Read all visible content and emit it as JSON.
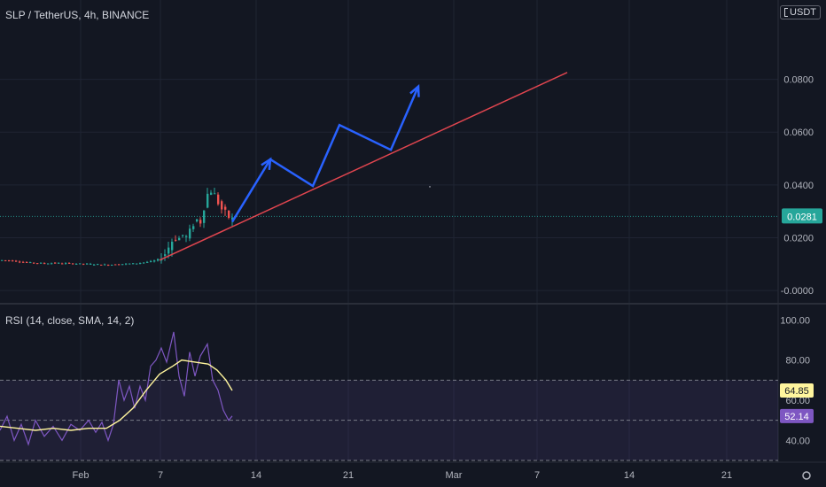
{
  "header": {
    "title": "SLP / TetherUS, 4h, BINANCE",
    "currency": "USDT"
  },
  "rsi": {
    "title": "RSI (14, close, SMA, 14, 2)"
  },
  "colors": {
    "background": "#131722",
    "grid": "#1f2433",
    "up": "#26a69a",
    "down": "#ef5350",
    "trendline": "#e0454f",
    "projection": "#2962ff",
    "price_line": "#26a69a",
    "rsi_line": "#7e57c2",
    "rsi_ma": "#fff59d",
    "text": "#b2b5be"
  },
  "chart_data": [
    {
      "type": "candlestick",
      "title": "SLP / TetherUS, 4h, BINANCE",
      "y_ticks": [
        "0.0800",
        "0.0600",
        "0.0400",
        "0.0200",
        "-0.0000"
      ],
      "y_tick_values": [
        0.08,
        0.06,
        0.04,
        0.02,
        0.0
      ],
      "x_ticks": [
        "Feb",
        "7",
        "14",
        "21",
        "Mar",
        "7",
        "14",
        "21"
      ],
      "last_price": "0.0281",
      "last_price_value": 0.0281,
      "ylim": [
        -0.004,
        0.1
      ],
      "price_path": [
        [
          0,
          0.0115
        ],
        [
          10,
          0.0113
        ],
        [
          20,
          0.011
        ],
        [
          30,
          0.0106
        ],
        [
          40,
          0.0104
        ],
        [
          50,
          0.0103
        ],
        [
          60,
          0.0104
        ],
        [
          70,
          0.0103
        ],
        [
          80,
          0.0102
        ],
        [
          90,
          0.0101
        ],
        [
          100,
          0.01
        ],
        [
          110,
          0.0099
        ],
        [
          120,
          0.0097
        ],
        [
          130,
          0.0099
        ],
        [
          140,
          0.0101
        ],
        [
          150,
          0.0102
        ],
        [
          160,
          0.0106
        ],
        [
          170,
          0.011
        ],
        [
          178,
          0.0118
        ],
        [
          185,
          0.014
        ],
        [
          190,
          0.017
        ],
        [
          195,
          0.02
        ],
        [
          200,
          0.0195
        ],
        [
          205,
          0.021
        ],
        [
          210,
          0.02
        ],
        [
          215,
          0.024
        ],
        [
          220,
          0.027
        ],
        [
          225,
          0.026
        ],
        [
          228,
          0.03
        ],
        [
          232,
          0.036
        ],
        [
          236,
          0.038
        ],
        [
          240,
          0.037
        ],
        [
          244,
          0.034
        ],
        [
          248,
          0.031
        ],
        [
          252,
          0.03
        ],
        [
          256,
          0.028
        ],
        [
          260,
          0.027
        ],
        [
          264,
          0.0275
        ]
      ],
      "trendline": [
        [
          180,
          0.0115
        ],
        [
          640,
          0.0826
        ]
      ],
      "projection_path": [
        [
          262,
          0.026
        ],
        [
          305,
          0.0497
        ],
        [
          353,
          0.0396
        ],
        [
          383,
          0.0627
        ],
        [
          441,
          0.0533
        ],
        [
          472,
          0.0773
        ]
      ]
    },
    {
      "type": "line",
      "title": "RSI (14, close, SMA, 14, 2)",
      "y_ticks": [
        "100.00",
        "80.00",
        "40.00"
      ],
      "y_tick_values": [
        100,
        80,
        40
      ],
      "ylim": [
        30,
        105
      ],
      "band": [
        30,
        70
      ],
      "midline": 50,
      "series": [
        {
          "values": [
            [
              0,
              45
            ],
            [
              8,
              52
            ],
            [
              16,
              40
            ],
            [
              24,
              48
            ],
            [
              32,
              38
            ],
            [
              40,
              50
            ],
            [
              50,
              42
            ],
            [
              60,
              47
            ],
            [
              70,
              40
            ],
            [
              80,
              48
            ],
            [
              90,
              45
            ],
            [
              100,
              50
            ],
            [
              108,
              44
            ],
            [
              115,
              49
            ],
            [
              122,
              40
            ],
            [
              128,
              48
            ],
            [
              134,
              70
            ],
            [
              140,
              60
            ],
            [
              146,
              67
            ],
            [
              152,
              56
            ],
            [
              158,
              67
            ],
            [
              164,
              60
            ],
            [
              170,
              77
            ],
            [
              176,
              80
            ],
            [
              182,
              86
            ],
            [
              188,
              79
            ],
            [
              196,
              94
            ],
            [
              202,
              72
            ],
            [
              208,
              62
            ],
            [
              214,
              84
            ],
            [
              220,
              72
            ],
            [
              226,
              82
            ],
            [
              234,
              88
            ],
            [
              240,
              70
            ],
            [
              246,
              65
            ],
            [
              252,
              55
            ],
            [
              258,
              50
            ],
            [
              262,
              52.14
            ]
          ]
        },
        {
          "values": [
            [
              0,
              47
            ],
            [
              20,
              46
            ],
            [
              40,
              45
            ],
            [
              60,
              46
            ],
            [
              80,
              45
            ],
            [
              100,
              46
            ],
            [
              120,
              46
            ],
            [
              135,
              50
            ],
            [
              150,
              56
            ],
            [
              165,
              65
            ],
            [
              180,
              73
            ],
            [
              195,
              77
            ],
            [
              205,
              80
            ],
            [
              220,
              79
            ],
            [
              235,
              78
            ],
            [
              245,
              75
            ],
            [
              255,
              70
            ],
            [
              262,
              64.85
            ]
          ]
        }
      ],
      "last_values": [
        "64.85",
        "52.14"
      ]
    }
  ]
}
